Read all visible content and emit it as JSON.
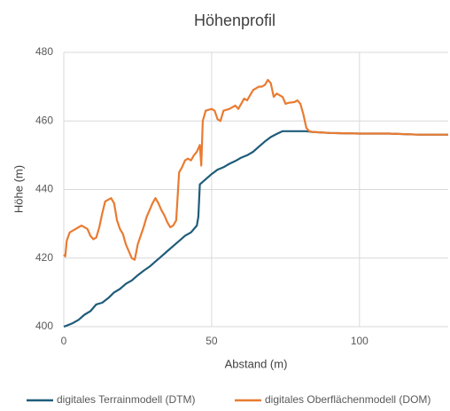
{
  "chart_data": {
    "type": "line",
    "title": "Höhenprofil",
    "x_label": "Abstand (m)",
    "y_label": "Höhe (m)",
    "xlim": [
      0,
      130
    ],
    "xticks": [
      0,
      50,
      100
    ],
    "ylim": [
      400,
      480
    ],
    "yticks": [
      400,
      420,
      440,
      460,
      480
    ],
    "grid": true,
    "legend": "bottom",
    "series": [
      {
        "name": "digitales Terrainmodell (DTM)",
        "color": "#1f5c7a",
        "x": [
          0,
          1,
          3,
          5,
          7,
          9,
          11,
          13,
          15,
          17,
          19,
          21,
          23,
          25,
          27,
          29,
          31,
          33,
          35,
          37,
          39,
          41,
          43,
          45,
          45.5,
          46,
          48,
          50,
          52,
          54,
          56,
          58,
          60,
          62,
          64,
          66,
          68,
          70,
          72,
          74,
          76,
          78,
          80,
          82,
          84,
          90,
          100,
          110,
          120,
          130
        ],
        "values": [
          400,
          400.3,
          401,
          402,
          403.5,
          404.5,
          406.5,
          407,
          408.3,
          410,
          411,
          412.5,
          413.5,
          415,
          416.3,
          417.5,
          419,
          420.5,
          422,
          423.5,
          425,
          426.5,
          427.5,
          429.5,
          432,
          441.5,
          443,
          444.5,
          445.8,
          446.5,
          447.5,
          448.3,
          449.3,
          450,
          451,
          452.5,
          454,
          455.3,
          456.2,
          457,
          457,
          457,
          457,
          457,
          456.8,
          456.5,
          456.3,
          456.3,
          456,
          456
        ]
      },
      {
        "name": "digitales Oberflächenmodell (DOM)",
        "color": "#e97b31",
        "x": [
          0,
          0.5,
          1,
          2,
          4,
          5,
          6,
          8,
          9,
          10,
          11,
          12,
          13,
          14,
          15,
          16,
          17,
          18,
          19,
          20,
          21,
          22,
          23,
          24,
          25,
          26,
          27,
          28,
          30,
          31,
          32,
          33,
          34,
          35,
          36,
          37,
          38,
          39,
          40,
          41,
          42,
          43,
          44,
          45,
          46,
          46.5,
          47,
          48,
          50,
          51,
          52,
          53,
          54,
          56,
          58,
          59,
          60,
          61,
          62,
          63,
          64,
          66,
          67,
          68,
          69,
          70,
          71,
          72,
          73,
          74,
          75,
          76,
          78,
          79,
          80,
          81,
          82,
          83,
          84,
          90,
          100,
          110,
          120,
          130
        ],
        "values": [
          421,
          420.5,
          425,
          427.5,
          428.5,
          429,
          429.5,
          428.5,
          426.5,
          425.5,
          426,
          429,
          433,
          436.5,
          437,
          437.5,
          436,
          431,
          428.5,
          427,
          424,
          422,
          420,
          419.5,
          424,
          426.5,
          429,
          432,
          436,
          437.5,
          436,
          434,
          432.5,
          430.5,
          429,
          429.5,
          431,
          445,
          446.5,
          448.5,
          449,
          448.5,
          450,
          451,
          453,
          447,
          460,
          463,
          463.5,
          463,
          460.5,
          460,
          463,
          463.5,
          464.5,
          463.5,
          465,
          466.5,
          466,
          467.5,
          469,
          470,
          470,
          470.5,
          472,
          471,
          467,
          468,
          467.5,
          467,
          465,
          465.3,
          465.5,
          466,
          465,
          462,
          458,
          457,
          456.8,
          456.5,
          456.3,
          456.3,
          456,
          456
        ]
      }
    ]
  }
}
